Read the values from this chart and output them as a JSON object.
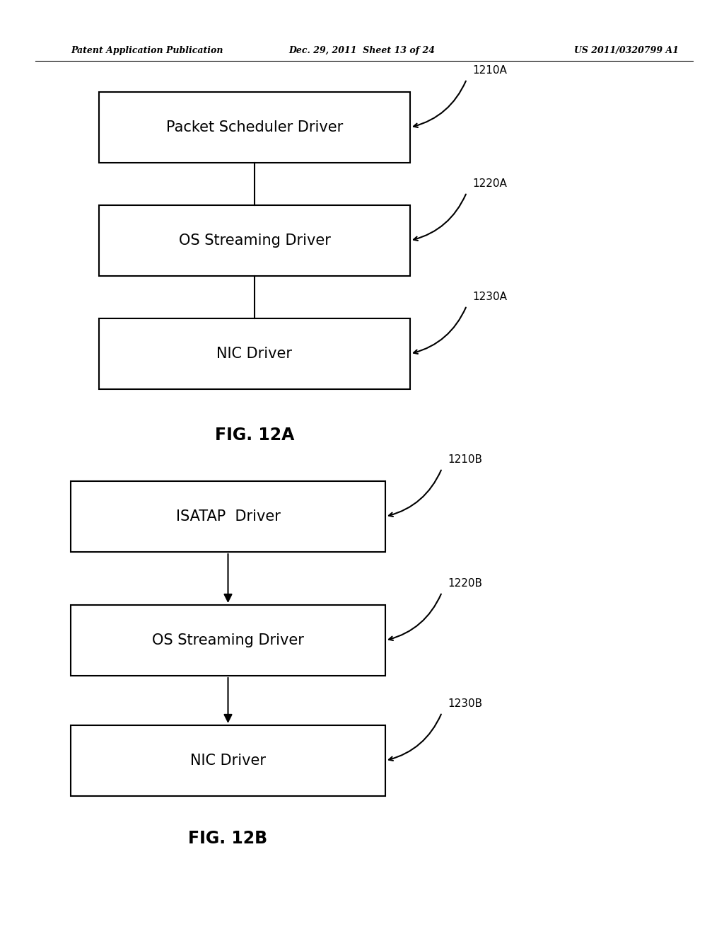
{
  "bg_color": "#ffffff",
  "header_left": "Patent Application Publication",
  "header_mid": "Dec. 29, 2011  Sheet 13 of 24",
  "header_right": "US 2011/0320799 A1",
  "fig_a": {
    "title": "FIG. 12A",
    "boxes": [
      {
        "label": "Packet Scheduler Driver",
        "tag": "1210A"
      },
      {
        "label": "OS Streaming Driver",
        "tag": "1220A"
      },
      {
        "label": "NIC Driver",
        "tag": "1230A"
      }
    ]
  },
  "fig_b": {
    "title": "FIG. 12B",
    "boxes": [
      {
        "label": "ISATAP  Driver",
        "tag": "1210B"
      },
      {
        "label": "OS Streaming Driver",
        "tag": "1220B"
      },
      {
        "label": "NIC Driver",
        "tag": "1230B"
      }
    ]
  }
}
